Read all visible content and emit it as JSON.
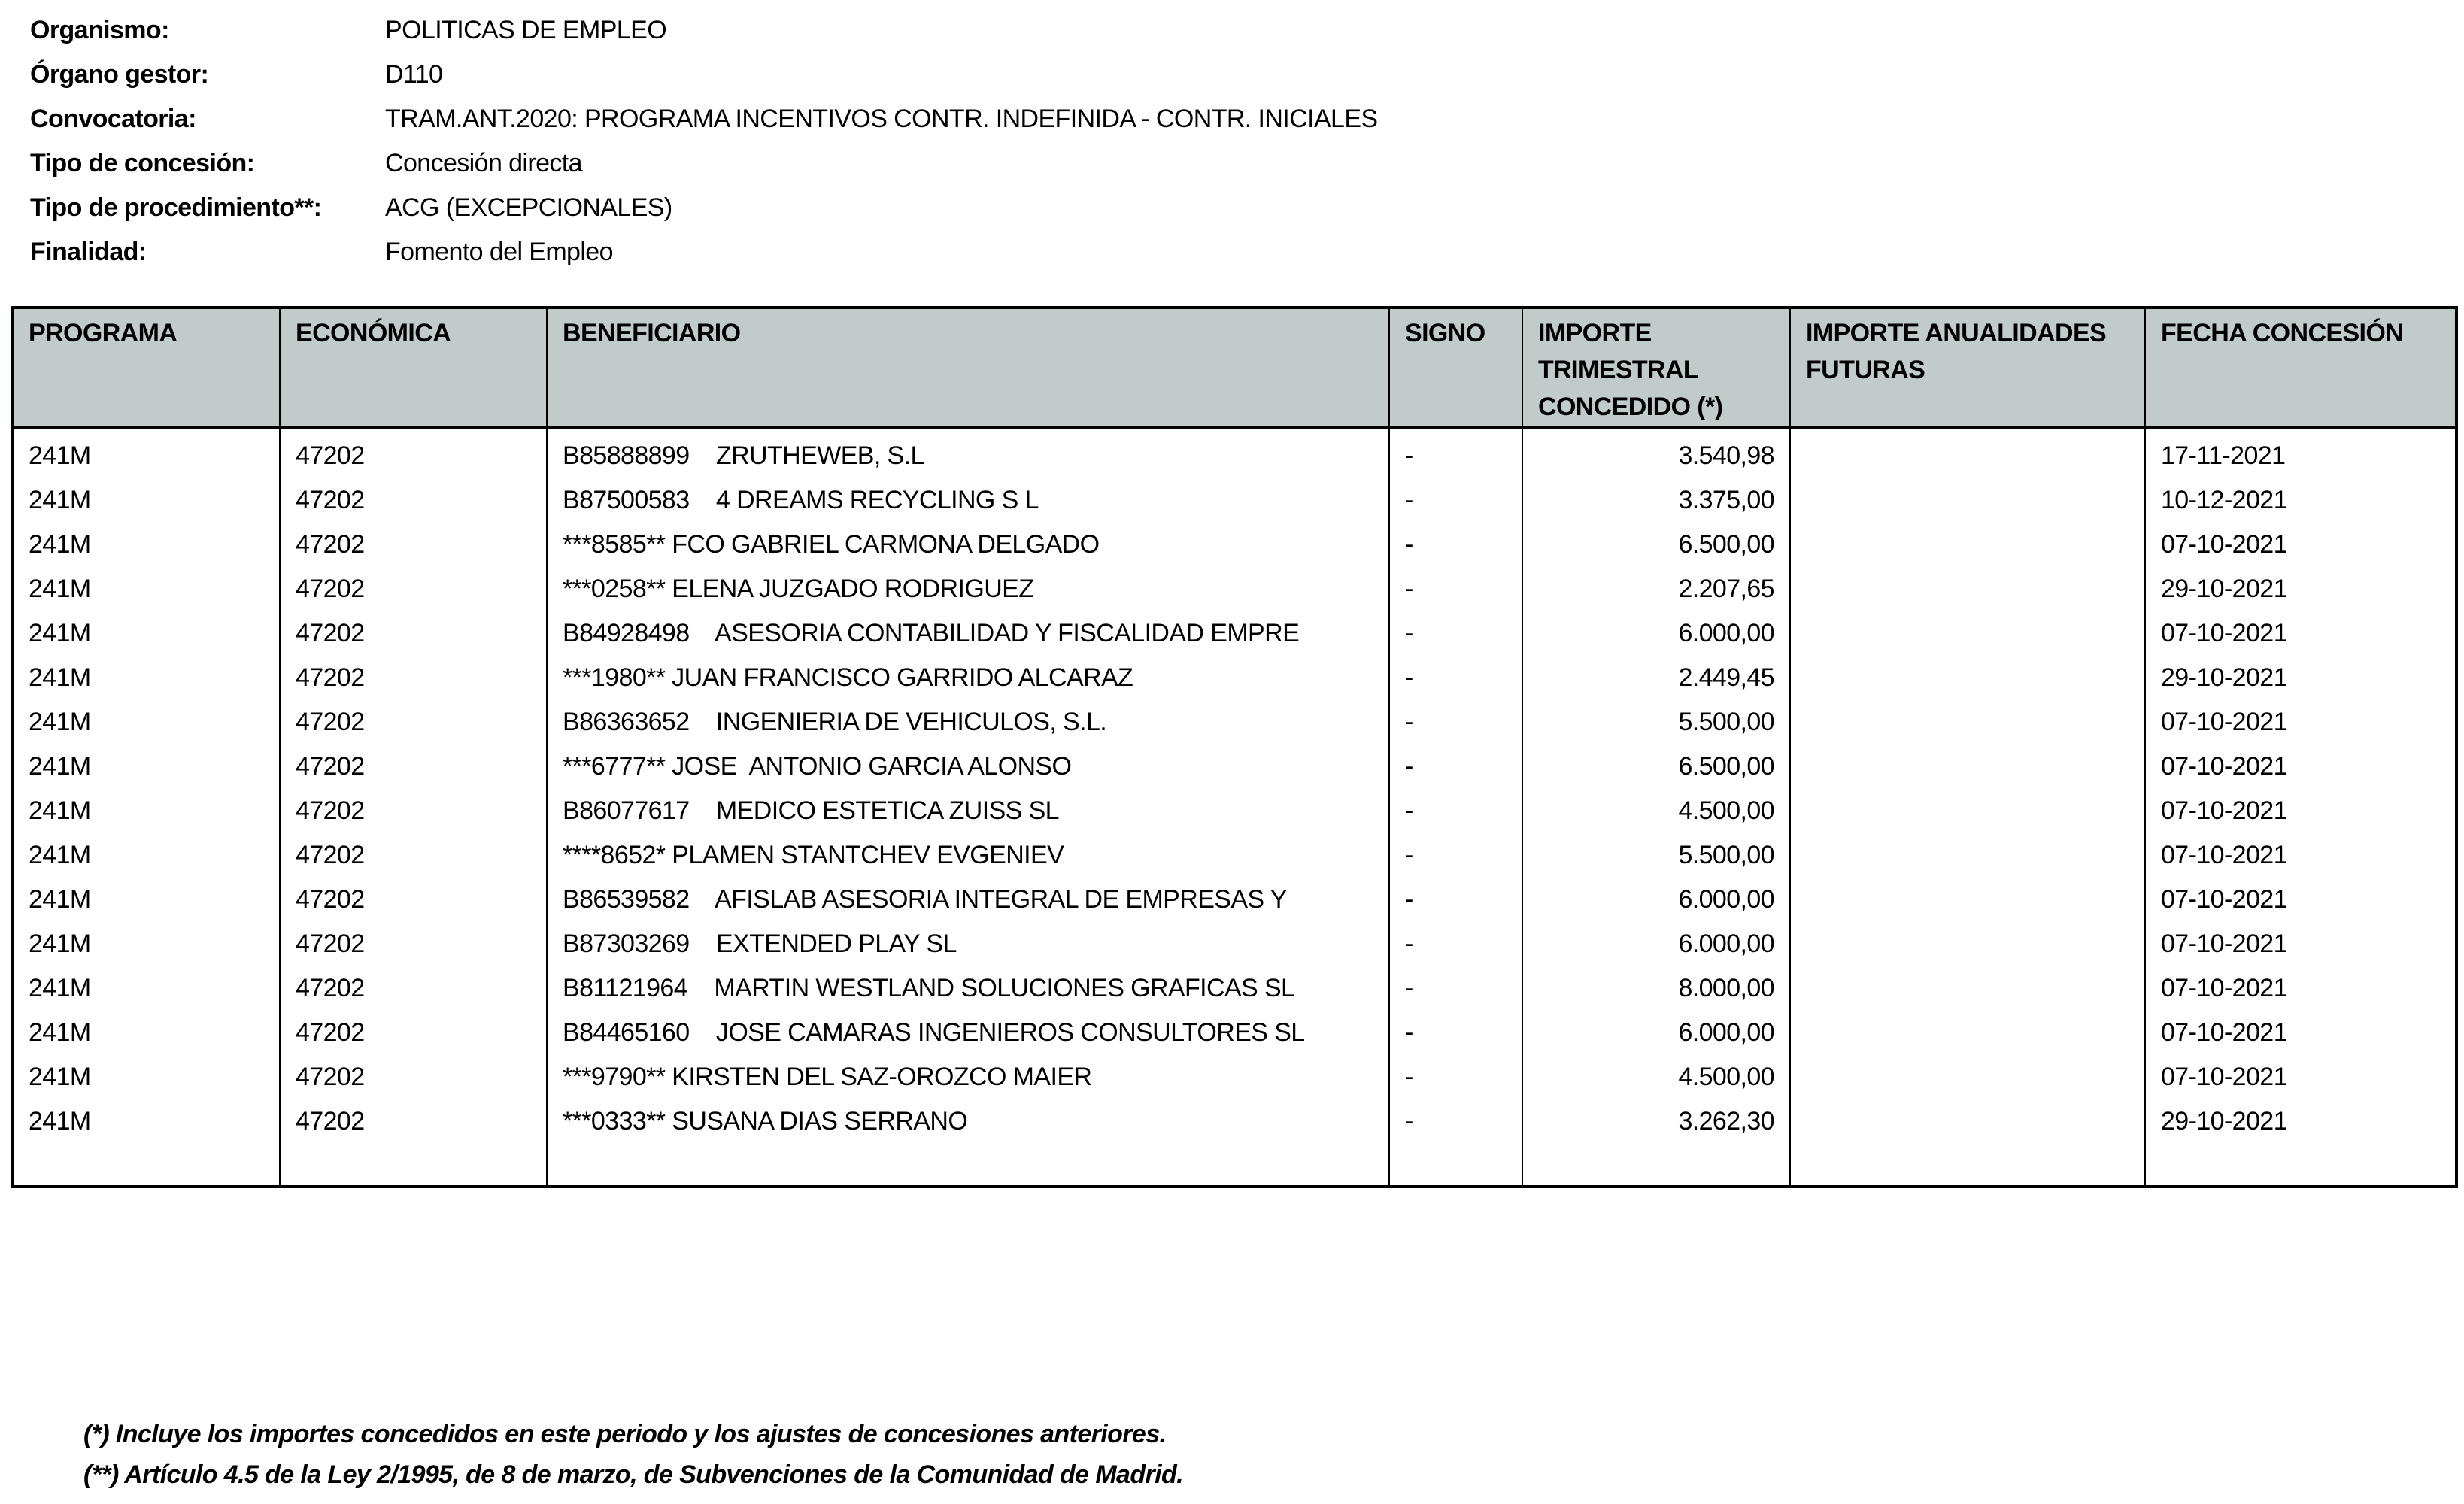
{
  "info": [
    {
      "label": "Organismo:",
      "value": "POLITICAS DE EMPLEO"
    },
    {
      "label": "Órgano gestor:",
      "value": "D110"
    },
    {
      "label": "Convocatoria:",
      "value": "TRAM.ANT.2020: PROGRAMA INCENTIVOS CONTR. INDEFINIDA - CONTR. INICIALES"
    },
    {
      "label": "Tipo de concesión:",
      "value": "Concesión directa"
    },
    {
      "label": "Tipo de procedimiento**:",
      "value": "ACG (EXCEPCIONALES)"
    },
    {
      "label": "Finalidad:",
      "value": "Fomento del Empleo"
    }
  ],
  "table": {
    "headers": [
      "PROGRAMA",
      "ECONÓMICA",
      "BENEFICIARIO",
      "SIGNO",
      "IMPORTE TRIMESTRAL CONCEDIDO (*)",
      "IMPORTE ANUALIDADES FUTURAS",
      "FECHA CONCESIÓN"
    ],
    "rows": [
      [
        "241M",
        "47202",
        "B85888899    ZRUTHEWEB, S.L",
        "-",
        "3.540,98",
        "",
        "17-11-2021"
      ],
      [
        "241M",
        "47202",
        "B87500583    4 DREAMS RECYCLING S L",
        "-",
        "3.375,00",
        "",
        "10-12-2021"
      ],
      [
        "241M",
        "47202",
        "***8585** FCO GABRIEL CARMONA DELGADO",
        "-",
        "6.500,00",
        "",
        "07-10-2021"
      ],
      [
        "241M",
        "47202",
        "***0258** ELENA JUZGADO RODRIGUEZ",
        "-",
        "2.207,65",
        "",
        "29-10-2021"
      ],
      [
        "241M",
        "47202",
        "B84928498    ASESORIA CONTABILIDAD Y FISCALIDAD EMPRE",
        "-",
        "6.000,00",
        "",
        "07-10-2021"
      ],
      [
        "241M",
        "47202",
        "***1980** JUAN FRANCISCO GARRIDO ALCARAZ",
        "-",
        "2.449,45",
        "",
        "29-10-2021"
      ],
      [
        "241M",
        "47202",
        "B86363652    INGENIERIA DE VEHICULOS, S.L.",
        "-",
        "5.500,00",
        "",
        "07-10-2021"
      ],
      [
        "241M",
        "47202",
        "***6777** JOSE  ANTONIO GARCIA ALONSO",
        "-",
        "6.500,00",
        "",
        "07-10-2021"
      ],
      [
        "241M",
        "47202",
        "B86077617    MEDICO ESTETICA ZUISS SL",
        "-",
        "4.500,00",
        "",
        "07-10-2021"
      ],
      [
        "241M",
        "47202",
        "****8652* PLAMEN STANTCHEV EVGENIEV",
        "-",
        "5.500,00",
        "",
        "07-10-2021"
      ],
      [
        "241M",
        "47202",
        "B86539582    AFISLAB ASESORIA INTEGRAL DE EMPRESAS Y",
        "-",
        "6.000,00",
        "",
        "07-10-2021"
      ],
      [
        "241M",
        "47202",
        "B87303269    EXTENDED PLAY SL",
        "-",
        "6.000,00",
        "",
        "07-10-2021"
      ],
      [
        "241M",
        "47202",
        "B81121964    MARTIN WESTLAND SOLUCIONES GRAFICAS SL",
        "-",
        "8.000,00",
        "",
        "07-10-2021"
      ],
      [
        "241M",
        "47202",
        "B84465160    JOSE CAMARAS INGENIEROS CONSULTORES SL",
        "-",
        "6.000,00",
        "",
        "07-10-2021"
      ],
      [
        "241M",
        "47202",
        "***9790** KIRSTEN DEL SAZ-OROZCO MAIER",
        "-",
        "4.500,00",
        "",
        "07-10-2021"
      ],
      [
        "241M",
        "47202",
        "***0333** SUSANA DIAS SERRANO",
        "-",
        "3.262,30",
        "",
        "29-10-2021"
      ]
    ]
  },
  "footnotes": [
    "(*) Incluye los importes concedidos en este periodo y los ajustes de concesiones anteriores.",
    "(**) Artículo 4.5 de la Ley 2/1995, de 8 de marzo, de Subvenciones de la Comunidad de Madrid."
  ],
  "colors": {
    "header_bg": "#c0cbca"
  }
}
